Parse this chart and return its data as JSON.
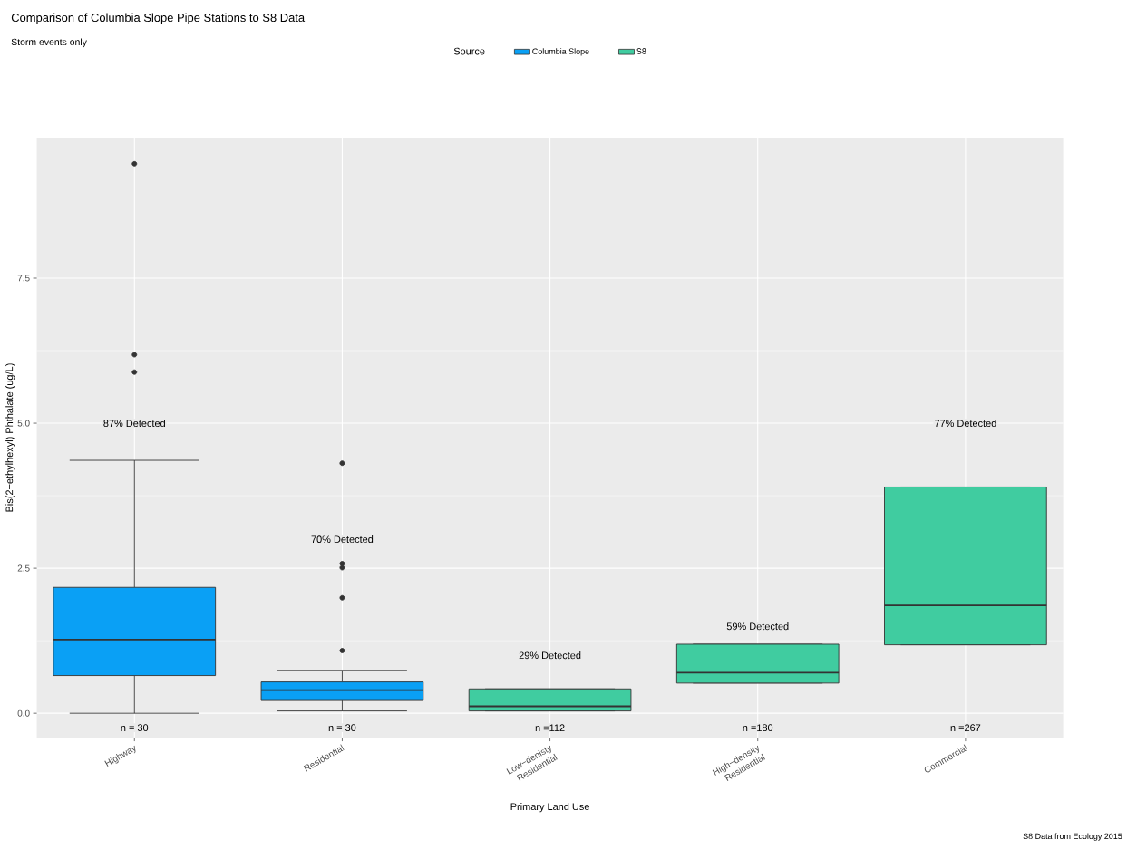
{
  "chart_data": {
    "type": "box",
    "title": "Comparison of Columbia Slope Pipe Stations to S8 Data",
    "subtitle": "Storm events only",
    "xlabel": "Primary Land Use",
    "ylabel": "Bis(2−ethylhexyl) Phthalate (ug/L)",
    "legend_title": "Source",
    "categories": [
      "Highway",
      "Residential",
      "Low−denisty Residential",
      "High−density Residential",
      "Commercial"
    ],
    "series": [
      {
        "name": "Columbia Slope",
        "color": "#0aa0f5",
        "boxes": [
          {
            "low": 0.0,
            "q1": 0.65,
            "median": 1.27,
            "q3": 2.17,
            "high": 4.36,
            "outliers": [
              9.47,
              6.18,
              5.88
            ]
          },
          {
            "low": 0.04,
            "q1": 0.22,
            "median": 0.4,
            "q3": 0.54,
            "high": 0.74,
            "outliers": [
              4.31,
              2.58,
              2.51,
              1.99,
              1.08
            ]
          },
          null,
          null,
          null
        ]
      },
      {
        "name": "S8",
        "color": "#40cca0",
        "boxes": [
          null,
          null,
          {
            "low": 0.04,
            "q1": 0.04,
            "median": 0.12,
            "q3": 0.42,
            "high": 0.42
          },
          {
            "low": 0.52,
            "q1": 0.52,
            "median": 0.7,
            "q3": 1.19,
            "high": 1.19
          },
          {
            "low": 1.18,
            "q1": 1.18,
            "median": 1.86,
            "q3": 3.9,
            "high": 3.9
          }
        ]
      }
    ],
    "ylim": [
      -0.42,
      9.92
    ],
    "yticks": [
      {
        "value": 0,
        "label": "0.0"
      },
      {
        "value": 2.5,
        "label": "2.5"
      },
      {
        "value": 5,
        "label": "5.0"
      },
      {
        "value": 7.5,
        "label": "7.5"
      }
    ],
    "grid": true,
    "legend": "top",
    "annotations": [
      "87% Detected",
      "70% Detected",
      "29% Detected",
      "59% Detected",
      "77% Detected",
      "n = 30",
      "n = 30",
      "n =112",
      "n =180",
      "n =267",
      "S8 Data from Ecology 2015"
    ]
  }
}
